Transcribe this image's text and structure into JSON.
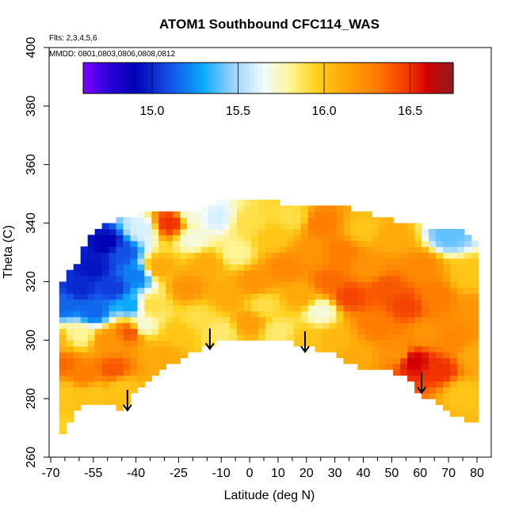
{
  "chart_data": {
    "type": "heatmap",
    "title": "ATOM1 Southbound CFC114_WAS",
    "flights_note": "Flts: 2,3,4,5,6",
    "dates_note": "MMDD: 0801,0803,0806,0808,0812",
    "xlabel": "Latitude (deg N)",
    "ylabel": "Theta (C)",
    "xlim": [
      -70,
      80
    ],
    "ylim": [
      260,
      400
    ],
    "x_ticks": [
      -70,
      -55,
      -40,
      -25,
      -10,
      0,
      10,
      20,
      30,
      40,
      50,
      60,
      70,
      80
    ],
    "x_minor_step": 5,
    "y_ticks": [
      260,
      280,
      300,
      320,
      340,
      360,
      380,
      400
    ],
    "colorbar": {
      "range": [
        14.6,
        16.75
      ],
      "ticks": [
        15.0,
        15.5,
        16.0,
        16.5
      ],
      "tick_labels": [
        "15.0",
        "15.5",
        "16.0",
        "16.5"
      ],
      "stops": [
        {
          "v": 14.6,
          "c": "#7f00ff"
        },
        {
          "v": 14.75,
          "c": "#2a00d8"
        },
        {
          "v": 14.9,
          "c": "#0000b4"
        },
        {
          "v": 15.1,
          "c": "#1450e6"
        },
        {
          "v": 15.3,
          "c": "#0aaaff"
        },
        {
          "v": 15.45,
          "c": "#8ccdff"
        },
        {
          "v": 15.65,
          "c": "#f0fbff"
        },
        {
          "v": 15.8,
          "c": "#fff596"
        },
        {
          "v": 15.95,
          "c": "#ffd21e"
        },
        {
          "v": 16.1,
          "c": "#ffaa0a"
        },
        {
          "v": 16.3,
          "c": "#ff7d00"
        },
        {
          "v": 16.5,
          "c": "#f03200"
        },
        {
          "v": 16.6,
          "c": "#d20000"
        },
        {
          "v": 16.75,
          "c": "#8c1e1e"
        }
      ]
    },
    "upper_boundary": [
      [
        -67,
        318
      ],
      [
        -60,
        328
      ],
      [
        -55,
        337
      ],
      [
        -50,
        340
      ],
      [
        -40,
        343
      ],
      [
        -30,
        344
      ],
      [
        -20,
        344
      ],
      [
        -10,
        348
      ],
      [
        0,
        347
      ],
      [
        10,
        347
      ],
      [
        20,
        346
      ],
      [
        30,
        346
      ],
      [
        40,
        344
      ],
      [
        50,
        341
      ],
      [
        60,
        339
      ],
      [
        70,
        338
      ],
      [
        75,
        338
      ],
      [
        77,
        336
      ],
      [
        80,
        333
      ]
    ],
    "lower_boundary": [
      [
        -67,
        265
      ],
      [
        -60,
        277
      ],
      [
        -50,
        279
      ],
      [
        -45,
        276
      ],
      [
        -40,
        283
      ],
      [
        -30,
        290
      ],
      [
        -20,
        296
      ],
      [
        -14,
        298
      ],
      [
        -10,
        300
      ],
      [
        0,
        299
      ],
      [
        10,
        301
      ],
      [
        20,
        298
      ],
      [
        30,
        295
      ],
      [
        40,
        290
      ],
      [
        50,
        289
      ],
      [
        55,
        287
      ],
      [
        60,
        282
      ],
      [
        70,
        276
      ],
      [
        75,
        273
      ],
      [
        80,
        272
      ]
    ],
    "field_nodes": [
      {
        "x": -68,
        "y": 300,
        "v": 16.05
      },
      {
        "x": -66,
        "y": 292,
        "v": 16.35
      },
      {
        "x": -64,
        "y": 282,
        "v": 16.0
      },
      {
        "x": -60,
        "y": 302,
        "v": 15.8
      },
      {
        "x": -58,
        "y": 288,
        "v": 16.3
      },
      {
        "x": -55,
        "y": 282,
        "v": 16.0
      },
      {
        "x": -50,
        "y": 300,
        "v": 16.2
      },
      {
        "x": -48,
        "y": 290,
        "v": 16.4
      },
      {
        "x": -45,
        "y": 284,
        "v": 16.0
      },
      {
        "x": -42,
        "y": 303,
        "v": 16.4
      },
      {
        "x": -65,
        "y": 312,
        "v": 15.15
      },
      {
        "x": -60,
        "y": 318,
        "v": 15.0
      },
      {
        "x": -55,
        "y": 325,
        "v": 14.95
      },
      {
        "x": -55,
        "y": 310,
        "v": 15.15
      },
      {
        "x": -50,
        "y": 333,
        "v": 14.9
      },
      {
        "x": -48,
        "y": 318,
        "v": 15.05
      },
      {
        "x": -45,
        "y": 330,
        "v": 15.1
      },
      {
        "x": -42,
        "y": 312,
        "v": 15.3
      },
      {
        "x": -40,
        "y": 322,
        "v": 15.2
      },
      {
        "x": -38,
        "y": 338,
        "v": 15.6
      },
      {
        "x": -38,
        "y": 305,
        "v": 15.7
      },
      {
        "x": -35,
        "y": 312,
        "v": 15.9
      },
      {
        "x": -32,
        "y": 325,
        "v": 16.1
      },
      {
        "x": -30,
        "y": 295,
        "v": 16.1
      },
      {
        "x": -28,
        "y": 340,
        "v": 16.5
      },
      {
        "x": -25,
        "y": 302,
        "v": 16.0
      },
      {
        "x": -22,
        "y": 318,
        "v": 16.2
      },
      {
        "x": -20,
        "y": 335,
        "v": 15.7
      },
      {
        "x": -18,
        "y": 308,
        "v": 15.9
      },
      {
        "x": -15,
        "y": 326,
        "v": 16.1
      },
      {
        "x": -12,
        "y": 342,
        "v": 15.6
      },
      {
        "x": -10,
        "y": 303,
        "v": 15.85
      },
      {
        "x": -8,
        "y": 315,
        "v": 16.1
      },
      {
        "x": -5,
        "y": 330,
        "v": 15.8
      },
      {
        "x": 0,
        "y": 340,
        "v": 15.9
      },
      {
        "x": 0,
        "y": 306,
        "v": 16.15
      },
      {
        "x": 2,
        "y": 320,
        "v": 16.2
      },
      {
        "x": 5,
        "y": 312,
        "v": 15.9
      },
      {
        "x": 8,
        "y": 335,
        "v": 16.0
      },
      {
        "x": 10,
        "y": 303,
        "v": 15.85
      },
      {
        "x": 12,
        "y": 325,
        "v": 16.25
      },
      {
        "x": 15,
        "y": 342,
        "v": 15.9
      },
      {
        "x": 18,
        "y": 315,
        "v": 16.1
      },
      {
        "x": 20,
        "y": 300,
        "v": 16.0
      },
      {
        "x": 22,
        "y": 330,
        "v": 16.2
      },
      {
        "x": 25,
        "y": 340,
        "v": 16.3
      },
      {
        "x": 25,
        "y": 310,
        "v": 15.7
      },
      {
        "x": 28,
        "y": 320,
        "v": 16.35
      },
      {
        "x": 30,
        "y": 300,
        "v": 16.05
      },
      {
        "x": 32,
        "y": 330,
        "v": 16.3
      },
      {
        "x": 35,
        "y": 315,
        "v": 16.45
      },
      {
        "x": 38,
        "y": 295,
        "v": 16.1
      },
      {
        "x": 40,
        "y": 338,
        "v": 16.0
      },
      {
        "x": 42,
        "y": 325,
        "v": 16.2
      },
      {
        "x": 45,
        "y": 305,
        "v": 16.3
      },
      {
        "x": 48,
        "y": 318,
        "v": 16.4
      },
      {
        "x": 50,
        "y": 335,
        "v": 16.1
      },
      {
        "x": 52,
        "y": 296,
        "v": 16.2
      },
      {
        "x": 55,
        "y": 312,
        "v": 16.45
      },
      {
        "x": 58,
        "y": 293,
        "v": 16.6
      },
      {
        "x": 60,
        "y": 325,
        "v": 16.25
      },
      {
        "x": 62,
        "y": 302,
        "v": 16.2
      },
      {
        "x": 65,
        "y": 315,
        "v": 16.3
      },
      {
        "x": 67,
        "y": 290,
        "v": 16.5
      },
      {
        "x": 70,
        "y": 336,
        "v": 15.4
      },
      {
        "x": 72,
        "y": 300,
        "v": 16.25
      },
      {
        "x": 75,
        "y": 282,
        "v": 16.0
      },
      {
        "x": 77,
        "y": 322,
        "v": 16.0
      },
      {
        "x": 79,
        "y": 295,
        "v": 16.1
      },
      {
        "x": 79,
        "y": 310,
        "v": 16.2
      },
      {
        "x": -64,
        "y": 268,
        "v": 15.95
      },
      {
        "x": -20,
        "y": 343,
        "v": 15.7
      }
    ],
    "arrows": [
      {
        "x": -43,
        "y_top": 283,
        "y_tip": 276
      },
      {
        "x": -14,
        "y_top": 304,
        "y_tip": 297
      },
      {
        "x": 19.5,
        "y_top": 303,
        "y_tip": 296
      },
      {
        "x": 60.5,
        "y_top": 289,
        "y_tip": 282
      }
    ]
  }
}
